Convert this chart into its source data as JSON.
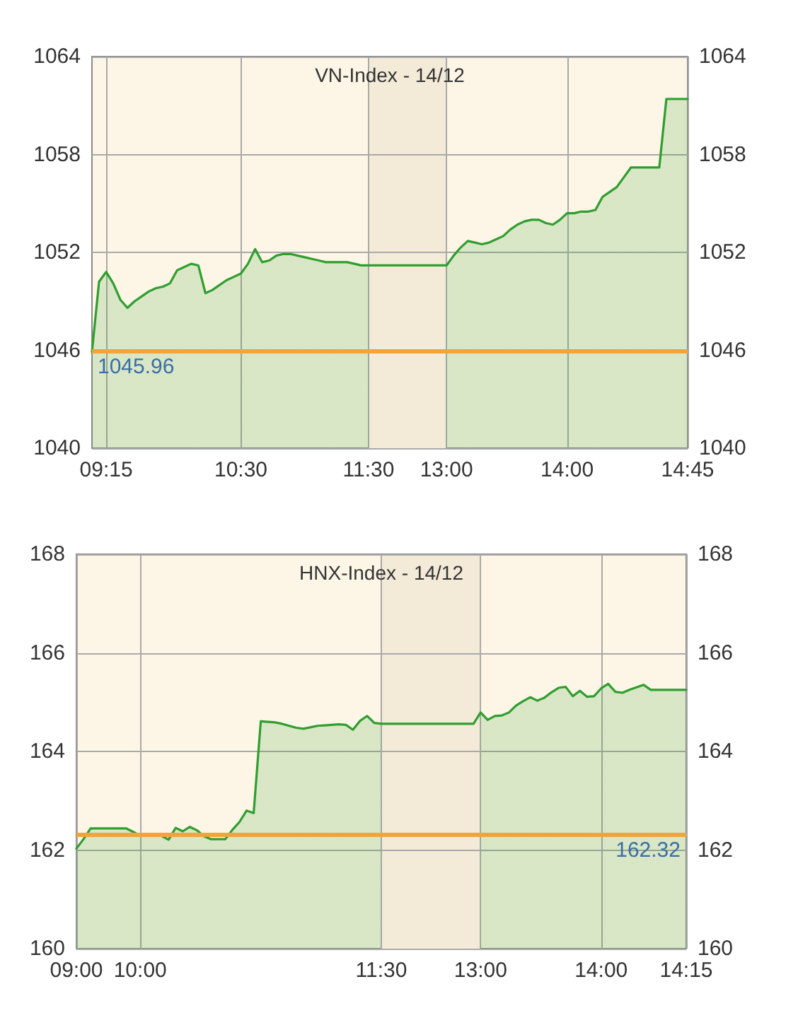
{
  "chart_data": [
    {
      "type": "area",
      "title": "VN-Index - 14/12",
      "categories": [
        null,
        null,
        "09:15",
        null,
        null,
        null,
        null,
        null,
        null,
        null,
        null,
        null,
        null,
        null,
        null,
        null,
        null,
        null,
        null,
        null,
        null,
        "10:30",
        null,
        null,
        null,
        null,
        null,
        null,
        null,
        null,
        null,
        null,
        null,
        null,
        null,
        null,
        null,
        null,
        null,
        "11:30",
        null,
        null,
        null,
        null,
        null,
        null,
        null,
        null,
        null,
        null,
        "13:00",
        null,
        null,
        null,
        null,
        null,
        null,
        null,
        null,
        null,
        null,
        null,
        null,
        null,
        null,
        null,
        null,
        "14:00",
        null,
        null,
        null,
        null,
        null,
        null,
        null,
        null,
        null,
        null,
        null,
        null,
        null,
        null,
        null,
        null,
        "14:45"
      ],
      "values": [
        1045.9,
        1050.2,
        1050.8,
        1050.1,
        1049.1,
        1048.6,
        1049.0,
        1049.3,
        1049.6,
        1049.8,
        1049.9,
        1050.1,
        1050.9,
        1051.1,
        1051.3,
        1051.2,
        1049.5,
        1049.7,
        1050.0,
        1050.3,
        1050.5,
        1050.7,
        1051.3,
        1052.2,
        1051.4,
        1051.5,
        1051.8,
        1051.9,
        1051.9,
        1051.8,
        1051.7,
        1051.6,
        1051.5,
        1051.4,
        1051.4,
        1051.4,
        1051.4,
        1051.3,
        1051.2,
        1051.2,
        1051.2,
        1051.2,
        1051.2,
        1051.2,
        1051.2,
        1051.2,
        1051.2,
        1051.2,
        1051.2,
        1051.2,
        1051.2,
        1051.8,
        1052.3,
        1052.7,
        1052.6,
        1052.5,
        1052.6,
        1052.8,
        1053.0,
        1053.4,
        1053.7,
        1053.9,
        1054.0,
        1054.0,
        1053.8,
        1053.7,
        1054.0,
        1054.4,
        1054.4,
        1054.5,
        1054.5,
        1054.6,
        1055.4,
        1055.7,
        1056.0,
        1056.6,
        1057.2,
        1057.2,
        1057.2,
        1057.2,
        1057.2,
        1061.4,
        1061.4,
        1061.4,
        1061.4
      ],
      "color": "#2f9e2f",
      "ylim": [
        1040,
        1064
      ],
      "yticks": [
        1040,
        1046,
        1052,
        1058,
        1064
      ],
      "y2lim": [
        1040,
        1064
      ],
      "y2ticks": [
        1040,
        1046,
        1052,
        1058,
        1064
      ],
      "grid": true,
      "ref_lines": [
        {
          "axis": "y",
          "value": 1045.96,
          "label": "1045.96",
          "color": "#f2a33a"
        }
      ],
      "bands": [
        {
          "axis": "x",
          "from": "11:30",
          "to": "13:00",
          "color": "#f3ebd8"
        }
      ]
    },
    {
      "type": "area",
      "title": "HNX-Index - 14/12",
      "categories": [
        "09:00",
        null,
        null,
        null,
        null,
        null,
        null,
        null,
        null,
        "10:00",
        null,
        null,
        null,
        null,
        null,
        null,
        null,
        null,
        null,
        null,
        null,
        null,
        null,
        null,
        null,
        null,
        null,
        null,
        null,
        null,
        null,
        null,
        null,
        null,
        null,
        null,
        null,
        null,
        null,
        null,
        null,
        null,
        null,
        "11:30",
        null,
        null,
        null,
        null,
        null,
        null,
        null,
        null,
        null,
        null,
        null,
        null,
        null,
        "13:00",
        null,
        null,
        null,
        null,
        null,
        null,
        null,
        null,
        null,
        null,
        null,
        null,
        null,
        null,
        null,
        null,
        "14:00",
        null,
        null,
        null,
        null,
        null,
        null,
        null,
        null,
        null,
        null,
        null,
        "14:15"
      ],
      "values": [
        162.03,
        162.22,
        162.44,
        162.44,
        162.44,
        162.44,
        162.44,
        162.44,
        162.37,
        162.29,
        162.29,
        162.29,
        162.29,
        162.21,
        162.45,
        162.38,
        162.47,
        162.4,
        162.28,
        162.22,
        162.22,
        162.22,
        162.41,
        162.57,
        162.8,
        162.75,
        164.61,
        164.6,
        164.59,
        164.56,
        164.52,
        164.48,
        164.46,
        164.49,
        164.52,
        164.53,
        164.54,
        164.55,
        164.54,
        164.44,
        164.62,
        164.72,
        164.58,
        164.56,
        164.56,
        164.56,
        164.56,
        164.56,
        164.56,
        164.56,
        164.56,
        164.56,
        164.56,
        164.56,
        164.56,
        164.56,
        164.56,
        164.79,
        164.64,
        164.72,
        164.73,
        164.79,
        164.93,
        165.02,
        165.1,
        165.03,
        165.09,
        165.2,
        165.29,
        165.31,
        165.12,
        165.23,
        165.11,
        165.12,
        165.28,
        165.37,
        165.21,
        165.19,
        165.25,
        165.3,
        165.35,
        165.25,
        165.25,
        165.25,
        165.25,
        165.25,
        165.25
      ],
      "color": "#2f9e2f",
      "ylim": [
        160,
        168
      ],
      "yticks": [
        160,
        162,
        164,
        166,
        168
      ],
      "y2lim": [
        160,
        168
      ],
      "y2ticks": [
        160,
        162,
        164,
        166,
        168
      ],
      "grid": true,
      "ref_lines": [
        {
          "axis": "y",
          "value": 162.32,
          "label": "162.32",
          "color": "#f2a33a"
        }
      ],
      "bands": [
        {
          "axis": "x",
          "from": "11:30",
          "to": "13:00",
          "color": "#f3ebd8"
        }
      ]
    }
  ]
}
